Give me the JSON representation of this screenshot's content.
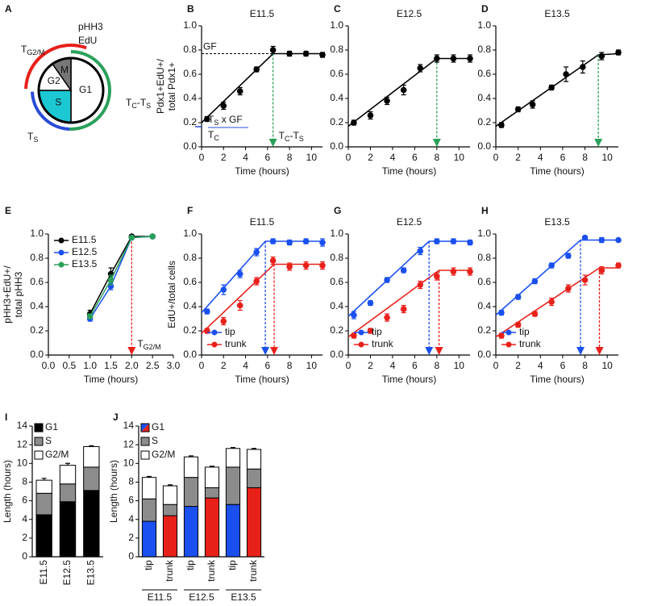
{
  "diagram": {
    "panel": "A",
    "pHH3": "pHH3",
    "EdU": "EdU",
    "phases": [
      "M",
      "G2",
      "S",
      "G1"
    ],
    "t_g2m": [
      {
        "text": "T",
        "sub": "G2/M"
      }
    ],
    "t_c_s": [
      {
        "text": "T",
        "sub": "C"
      },
      {
        "text": "-T",
        "sub": "S"
      }
    ],
    "t_s": [
      {
        "text": "T",
        "sub": "S"
      }
    ]
  },
  "chart_data": [
    {
      "type": "line",
      "panel": "B",
      "title": "E11.5",
      "xlabel": "Time (hours)",
      "ylabel": [
        "Pdx1+EdU+/",
        "total Pdx1+"
      ],
      "xlim": [
        0,
        11
      ],
      "ylim": [
        0,
        1
      ],
      "xticks": [
        0,
        2,
        4,
        6,
        8,
        10
      ],
      "yticks": [
        {
          "value": 0,
          "label": "0.0"
        },
        0.2,
        0.4,
        0.6,
        0.8,
        {
          "value": 1,
          "label": "1.0"
        }
      ],
      "series": [
        {
          "color": "#000000",
          "x": [
            0.5,
            2,
            3.5,
            5,
            6.5,
            8,
            9.5,
            11
          ],
          "values": [
            0.23,
            0.34,
            0.46,
            0.64,
            0.8,
            0.77,
            0.77,
            0.76
          ],
          "errors": [
            0.02,
            0.03,
            0.03,
            0.02,
            0.03,
            0.02,
            0.02,
            0.02
          ]
        }
      ],
      "fits": [
        {
          "color": "#000000",
          "x": [
            0,
            6.5,
            11
          ],
          "values": [
            0.2,
            0.77,
            0.77
          ]
        }
      ],
      "hguide": {
        "value": 0.77,
        "label": "GF"
      },
      "guides": [
        {
          "x": 6.5,
          "top": 0.77,
          "color": "#2aa05a",
          "label": [
            {
              "text": "T",
              "sub": "C"
            },
            {
              "text": "-T",
              "sub": "S"
            }
          ]
        }
      ],
      "fraction": {
        "color": "#2a4bd7",
        "numerator": [
          {
            "text": "T",
            "sub": "S"
          },
          {
            "text": " x GF"
          }
        ],
        "denominator": [
          {
            "text": "T",
            "sub": "C"
          }
        ]
      }
    },
    {
      "type": "line",
      "panel": "C",
      "title": "E12.5",
      "xlabel": "Time (hours)",
      "xlim": [
        0,
        11
      ],
      "ylim": [
        0,
        1
      ],
      "xticks": [
        0,
        2,
        4,
        6,
        8,
        10
      ],
      "yticks": [
        {
          "value": 0,
          "label": "0.0"
        },
        0.2,
        0.4,
        0.6,
        0.8,
        {
          "value": 1,
          "label": "1.0"
        }
      ],
      "series": [
        {
          "color": "#000000",
          "x": [
            0.5,
            2,
            3.5,
            5,
            6.5,
            8,
            9.5,
            11
          ],
          "values": [
            0.2,
            0.26,
            0.38,
            0.47,
            0.65,
            0.73,
            0.73,
            0.73
          ],
          "errors": [
            0.02,
            0.03,
            0.03,
            0.04,
            0.03,
            0.03,
            0.03,
            0.03
          ]
        }
      ],
      "fits": [
        {
          "color": "#000000",
          "x": [
            0,
            8,
            11
          ],
          "values": [
            0.17,
            0.73,
            0.73
          ]
        }
      ],
      "guides": [
        {
          "x": 8,
          "top": 0.73,
          "color": "#2aa05a"
        }
      ]
    },
    {
      "type": "line",
      "panel": "D",
      "title": "E13.5",
      "xlabel": "Time (hours)",
      "xlim": [
        0,
        11
      ],
      "ylim": [
        0,
        1
      ],
      "xticks": [
        0,
        2,
        4,
        6,
        8,
        10
      ],
      "yticks": [
        {
          "value": 0,
          "label": "0.0"
        },
        0.2,
        0.4,
        0.6,
        0.8,
        {
          "value": 1,
          "label": "1.0"
        }
      ],
      "series": [
        {
          "color": "#000000",
          "x": [
            0.5,
            2,
            3.3,
            5,
            6.3,
            7.8,
            9.5,
            11
          ],
          "values": [
            0.18,
            0.31,
            0.35,
            0.49,
            0.6,
            0.66,
            0.75,
            0.78
          ],
          "errors": [
            0.02,
            0.02,
            0.03,
            0.02,
            0.06,
            0.05,
            0.03,
            0.02
          ]
        }
      ],
      "fits": [
        {
          "color": "#000000",
          "x": [
            0,
            9.2,
            11
          ],
          "values": [
            0.17,
            0.76,
            0.77
          ]
        }
      ],
      "guides": [
        {
          "x": 9.2,
          "top": 0.76,
          "color": "#2aa05a"
        }
      ]
    },
    {
      "type": "line",
      "panel": "E",
      "xlabel": "Time (hours)",
      "ylabel": [
        "pHH3+EdU+/",
        "total pHH3"
      ],
      "xlim": [
        0,
        3
      ],
      "ylim": [
        0,
        1
      ],
      "xticks": [
        {
          "value": 0,
          "label": "0.0"
        },
        0.5,
        {
          "value": 1,
          "label": "1.0"
        },
        1.5,
        {
          "value": 2,
          "label": "2.0"
        },
        2.5,
        {
          "value": 3,
          "label": "3.0"
        }
      ],
      "yticks": [
        {
          "value": 0,
          "label": "0.0"
        },
        0.2,
        0.4,
        0.6,
        0.8,
        {
          "value": 1,
          "label": "1.0"
        }
      ],
      "legend": "upper left",
      "series": [
        {
          "name": "E11.5",
          "color": "#000000",
          "x": [
            1,
            1.5,
            2,
            2.5
          ],
          "values": [
            0.34,
            0.67,
            0.98,
            0.98
          ],
          "errors": [
            0.03,
            0.05,
            0.01,
            0.01
          ]
        },
        {
          "name": "E12.5",
          "color": "#1a4ff0",
          "x": [
            1,
            1.5,
            2,
            2.5
          ],
          "values": [
            0.3,
            0.57,
            0.97,
            0.98
          ],
          "errors": [
            0.02,
            0.03,
            0.01,
            0.01
          ]
        },
        {
          "name": "E13.5",
          "color": "#2aa05a",
          "x": [
            1,
            1.5,
            2,
            2.5
          ],
          "values": [
            0.32,
            0.62,
            0.97,
            0.98
          ],
          "errors": [
            0.02,
            0.04,
            0.01,
            0.01
          ]
        }
      ],
      "guides": [
        {
          "x": 2,
          "top": 0.97,
          "color": "#e8201a",
          "label": [
            {
              "text": "T",
              "sub": "G2/M"
            }
          ]
        }
      ]
    },
    {
      "type": "line",
      "panel": "F",
      "title": "E11.5",
      "xlabel": "Time (hours)",
      "ylabel": [
        "EdU+/total cells"
      ],
      "xlim": [
        0,
        11
      ],
      "ylim": [
        0,
        1
      ],
      "xticks": [
        0,
        2,
        4,
        6,
        8,
        10
      ],
      "yticks": [
        {
          "value": 0,
          "label": "0.0"
        },
        0.2,
        0.4,
        0.6,
        0.8,
        {
          "value": 1,
          "label": "1.0"
        }
      ],
      "legend": "lower left",
      "series": [
        {
          "name": "tip",
          "color": "#1a4ff0",
          "x": [
            0.5,
            2,
            3.5,
            5,
            6.5,
            8,
            9.5,
            11
          ],
          "values": [
            0.36,
            0.54,
            0.67,
            0.85,
            0.94,
            0.93,
            0.94,
            0.93
          ],
          "errors": [
            0.02,
            0.04,
            0.03,
            0.03,
            0.02,
            0.02,
            0.02,
            0.03
          ]
        },
        {
          "name": "trunk",
          "color": "#e8201a",
          "x": [
            0.5,
            2,
            3.5,
            5,
            6.5,
            8,
            9.5,
            11
          ],
          "values": [
            0.2,
            0.28,
            0.41,
            0.61,
            0.78,
            0.73,
            0.74,
            0.74
          ],
          "errors": [
            0.02,
            0.03,
            0.04,
            0.03,
            0.03,
            0.03,
            0.03,
            0.03
          ]
        }
      ],
      "fits": [
        {
          "color": "#1a4ff0",
          "x": [
            0,
            5.8,
            11
          ],
          "values": [
            0.35,
            0.94,
            0.94
          ]
        },
        {
          "color": "#e8201a",
          "x": [
            0,
            6.6,
            11
          ],
          "values": [
            0.18,
            0.75,
            0.75
          ]
        }
      ],
      "guides": [
        {
          "x": 5.8,
          "top": 0.94,
          "color": "#1a4ff0"
        },
        {
          "x": 6.6,
          "top": 0.75,
          "color": "#e8201a"
        }
      ]
    },
    {
      "type": "line",
      "panel": "G",
      "title": "E12.5",
      "xlabel": "Time (hours)",
      "xlim": [
        0,
        11
      ],
      "ylim": [
        0,
        1
      ],
      "xticks": [
        0,
        2,
        4,
        6,
        8,
        10
      ],
      "yticks": [
        {
          "value": 0,
          "label": "0.0"
        },
        0.2,
        0.4,
        0.6,
        0.8,
        {
          "value": 1,
          "label": "1.0"
        }
      ],
      "legend": "lower left",
      "series": [
        {
          "name": "tip",
          "color": "#1a4ff0",
          "x": [
            0.5,
            2,
            3.5,
            5,
            6.5,
            8,
            9.5,
            11
          ],
          "values": [
            0.33,
            0.43,
            0.62,
            0.7,
            0.86,
            0.94,
            0.94,
            0.93
          ],
          "errors": [
            0.03,
            0.02,
            0.02,
            0.02,
            0.03,
            0.02,
            0.02,
            0.02
          ]
        },
        {
          "name": "trunk",
          "color": "#e8201a",
          "x": [
            0.5,
            2,
            3.5,
            5,
            6.5,
            8,
            9.5,
            11
          ],
          "values": [
            0.16,
            0.2,
            0.31,
            0.38,
            0.58,
            0.65,
            0.69,
            0.69
          ],
          "errors": [
            0.02,
            0.02,
            0.03,
            0.03,
            0.03,
            0.03,
            0.03,
            0.03
          ]
        }
      ],
      "fits": [
        {
          "color": "#1a4ff0",
          "x": [
            0,
            7.3,
            11
          ],
          "values": [
            0.32,
            0.94,
            0.94
          ]
        },
        {
          "color": "#e8201a",
          "x": [
            0,
            8.2,
            11
          ],
          "values": [
            0.15,
            0.7,
            0.7
          ]
        }
      ],
      "guides": [
        {
          "x": 7.3,
          "top": 0.94,
          "color": "#1a4ff0"
        },
        {
          "x": 8.2,
          "top": 0.7,
          "color": "#e8201a"
        }
      ]
    },
    {
      "type": "line",
      "panel": "H",
      "title": "E13.5",
      "xlabel": "Time (hours)",
      "xlim": [
        0,
        11
      ],
      "ylim": [
        0,
        1
      ],
      "xticks": [
        0,
        2,
        4,
        6,
        8,
        10
      ],
      "yticks": [
        {
          "value": 0,
          "label": "0.0"
        },
        0.2,
        0.4,
        0.6,
        0.8,
        {
          "value": 1,
          "label": "1.0"
        }
      ],
      "legend": "lower left",
      "series": [
        {
          "name": "tip",
          "color": "#1a4ff0",
          "x": [
            0.5,
            2,
            3.5,
            5,
            6.5,
            8,
            9.5,
            11
          ],
          "values": [
            0.35,
            0.48,
            0.61,
            0.74,
            0.82,
            0.97,
            0.95,
            0.95
          ],
          "errors": [
            0.02,
            0.02,
            0.02,
            0.02,
            0.02,
            0.01,
            0.02,
            0.01
          ]
        },
        {
          "name": "trunk",
          "color": "#e8201a",
          "x": [
            0.5,
            2,
            3.5,
            5,
            6.5,
            8,
            9.5,
            11
          ],
          "values": [
            0.16,
            0.25,
            0.34,
            0.44,
            0.55,
            0.62,
            0.7,
            0.74
          ],
          "errors": [
            0.02,
            0.02,
            0.02,
            0.03,
            0.03,
            0.04,
            0.03,
            0.02
          ]
        }
      ],
      "fits": [
        {
          "color": "#1a4ff0",
          "x": [
            0,
            7.6,
            11
          ],
          "values": [
            0.33,
            0.95,
            0.95
          ]
        },
        {
          "color": "#e8201a",
          "x": [
            0,
            9.3,
            11
          ],
          "values": [
            0.15,
            0.72,
            0.72
          ]
        }
      ],
      "guides": [
        {
          "x": 7.6,
          "top": 0.95,
          "color": "#1a4ff0"
        },
        {
          "x": 9.3,
          "top": 0.72,
          "color": "#e8201a"
        }
      ]
    },
    {
      "type": "bar",
      "panel": "I",
      "ylabel": "Length (hours)",
      "categories": [
        "E11.5",
        "E12.5",
        "E13.5"
      ],
      "ylim": [
        0,
        14
      ],
      "yticks": [
        0,
        2,
        4,
        6,
        8,
        10,
        12,
        14
      ],
      "legend": "upper left",
      "series": [
        {
          "name": "G1",
          "color": "#000000",
          "values": [
            4.5,
            5.9,
            7.1
          ],
          "errors": [
            0.4,
            0.5,
            0.4
          ]
        },
        {
          "name": "S",
          "color": "#8c8c8c",
          "values": [
            2.3,
            1.9,
            2.5
          ],
          "errors": [
            0.5,
            0.4,
            0.4
          ]
        },
        {
          "name": "G2/M",
          "color": "#ffffff",
          "values": [
            1.4,
            2.0,
            2.2
          ],
          "errors": [
            0.2,
            0.2,
            0.1
          ]
        }
      ]
    },
    {
      "type": "bar",
      "panel": "J",
      "ylabel": "Length (hours)",
      "categories": [
        "tip",
        "trunk",
        "tip",
        "trunk",
        "tip",
        "trunk"
      ],
      "groups": [
        "E11.5",
        "E12.5",
        "E13.5"
      ],
      "ylim": [
        0,
        14
      ],
      "yticks": [
        0,
        2,
        4,
        6,
        8,
        10,
        12,
        14
      ],
      "legend": "upper left",
      "series": [
        {
          "name": "G1",
          "colors": [
            "#1a4ff0",
            "#e8201a",
            "#1a4ff0",
            "#e8201a",
            "#1a4ff0",
            "#e8201a"
          ],
          "values": [
            3.8,
            4.4,
            5.4,
            6.3,
            5.6,
            7.4
          ],
          "errors": [
            0.3,
            0.3,
            0.3,
            0.3,
            0.3,
            0.5
          ]
        },
        {
          "name": "S",
          "color": "#8c8c8c",
          "values": [
            2.4,
            1.2,
            3.1,
            1.1,
            4.0,
            2.0
          ],
          "errors": [
            0.5,
            0.3,
            0.3,
            0.3,
            0.3,
            0.4
          ]
        },
        {
          "name": "G2/M",
          "color": "#ffffff",
          "values": [
            2.3,
            2.0,
            2.2,
            2.2,
            2.0,
            2.1
          ],
          "errors": [
            0.1,
            0.1,
            0.1,
            0.1,
            0.1,
            0.1
          ]
        }
      ]
    }
  ]
}
